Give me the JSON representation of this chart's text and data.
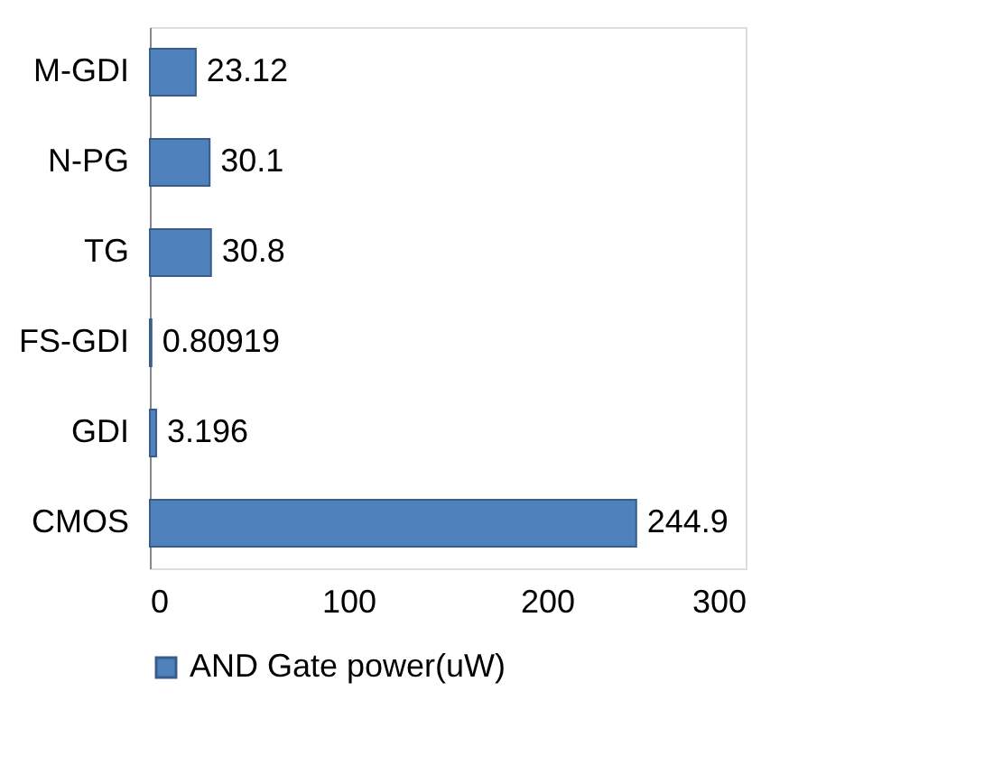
{
  "chart_data": {
    "type": "bar",
    "orientation": "horizontal",
    "categories": [
      "M-GDI",
      "N-PG",
      "TG",
      "FS-GDI",
      "GDI",
      "CMOS"
    ],
    "series": [
      {
        "name": "AND Gate power(uW)",
        "color": "#4f81bd",
        "values": [
          23.12,
          30.1,
          30.8,
          0.80919,
          3.196,
          244.9
        ]
      }
    ],
    "xlim": [
      0,
      300
    ],
    "xticks": [
      0,
      100,
      200,
      300
    ],
    "data_labels": true,
    "legend": "bottom",
    "grid": false
  }
}
